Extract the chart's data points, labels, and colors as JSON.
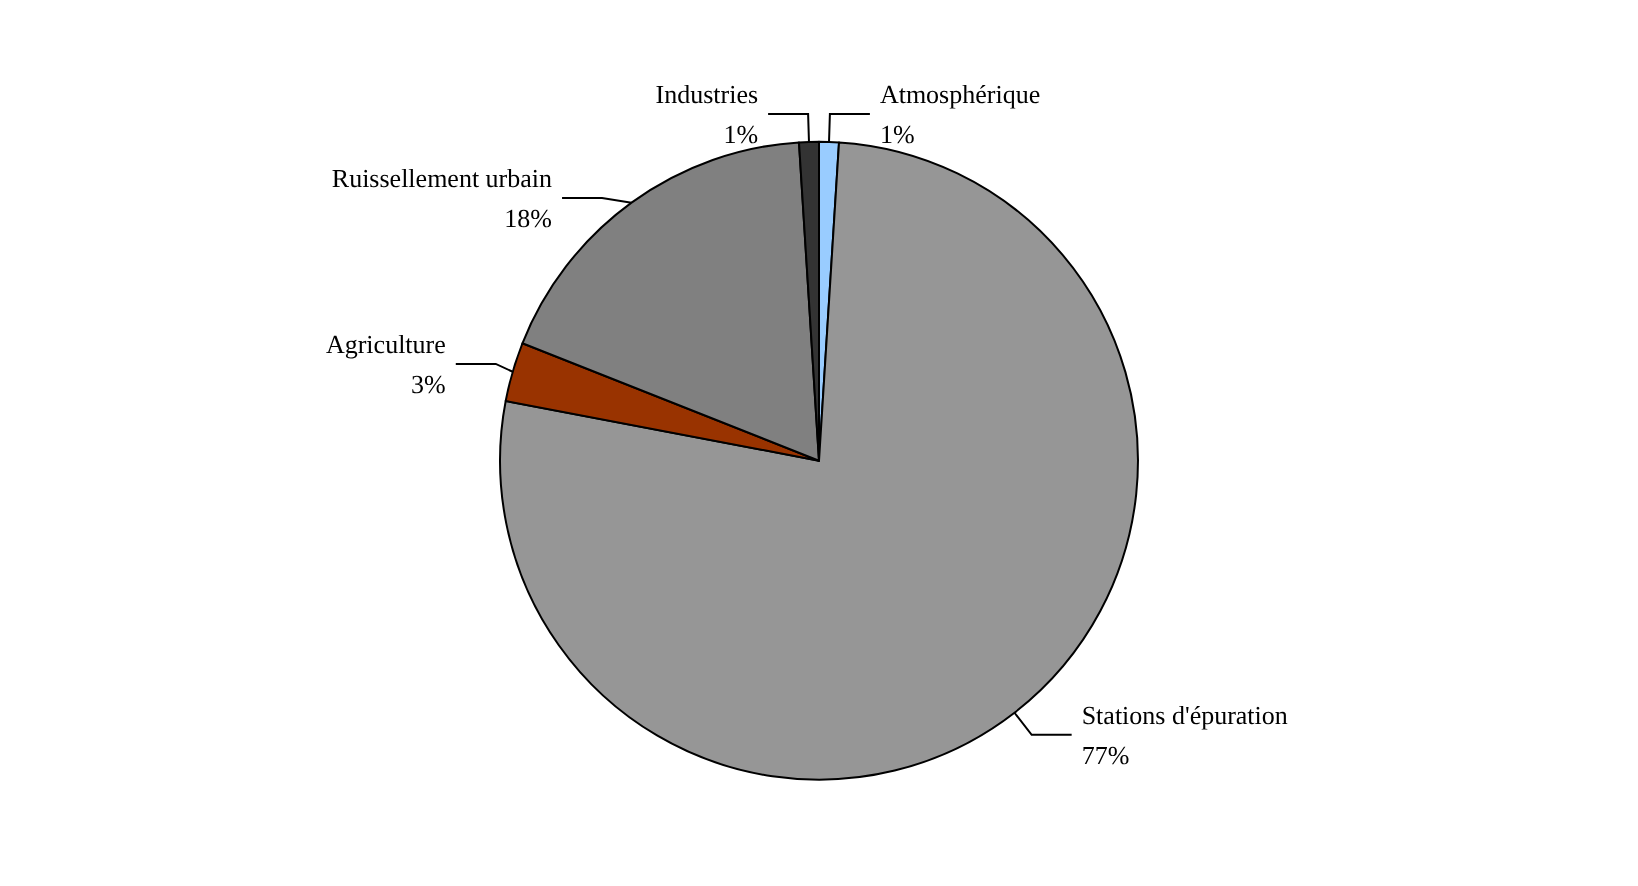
{
  "chart_data": {
    "type": "pie",
    "categories": [
      "Atmosphérique",
      "Stations d'épuration",
      "Agriculture",
      "Ruissellement urbain",
      "Industries"
    ],
    "values": [
      1,
      77,
      3,
      18,
      1
    ],
    "colors": [
      "#99ccff",
      "#969696",
      "#993300",
      "#808080",
      "#333333"
    ],
    "value_labels": [
      "1%",
      "77%",
      "3%",
      "18%",
      "1%"
    ],
    "legend": false
  }
}
